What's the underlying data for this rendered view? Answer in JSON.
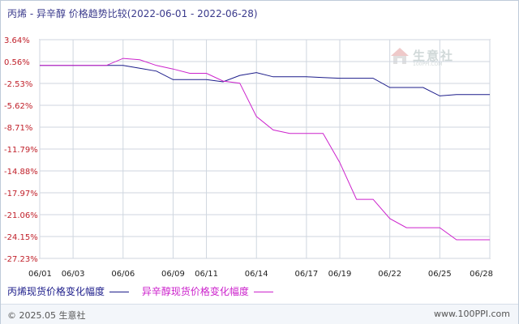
{
  "header": {
    "title": "丙烯 - 异辛醇 价格趋势比较",
    "date_range": "(2022-06-01 - 2022-06-28)"
  },
  "watermark": {
    "text": "生意社",
    "url": "100PPI.COM"
  },
  "footer": {
    "copyright": "© 2025.05 生意社",
    "site": "www.100PPI.com"
  },
  "colors": {
    "series1": "#1c1c8a",
    "series2": "#cc22cc",
    "y_tick": "#c0202a",
    "grid": "#cfd6df",
    "axis": "#888888"
  },
  "chart_data": {
    "type": "line",
    "title": "丙烯 - 异辛醇 价格趋势比较",
    "xlabel": "",
    "ylabel": "",
    "x": [
      "06/01",
      "06/02",
      "06/03",
      "06/04",
      "06/05",
      "06/06",
      "06/07",
      "06/08",
      "06/09",
      "06/10",
      "06/11",
      "06/12",
      "06/13",
      "06/14",
      "06/15",
      "06/16",
      "06/17",
      "06/18",
      "06/19",
      "06/20",
      "06/21",
      "06/22",
      "06/23",
      "06/24",
      "06/25",
      "06/26",
      "06/27",
      "06/28"
    ],
    "x_tick_labels": [
      "06/01",
      "06/03",
      "06/06",
      "06/09",
      "06/11",
      "06/14",
      "06/17",
      "06/19",
      "06/22",
      "06/25",
      "06/28"
    ],
    "y_ticks": [
      "3.64%",
      "0.56%",
      "-2.53%",
      "-5.62%",
      "-8.71%",
      "-11.79%",
      "-14.88%",
      "-17.97%",
      "-21.06%",
      "-24.15%",
      "-27.23%"
    ],
    "ylim": [
      -27.23,
      3.64
    ],
    "grid": true,
    "legend_position": "bottom-left",
    "series": [
      {
        "name": "丙烯现货价格变化幅度",
        "color": "#1c1c8a",
        "values": [
          0,
          0,
          0,
          0,
          0,
          0,
          -0.4,
          -0.8,
          -2.0,
          -2.0,
          -2.0,
          -2.3,
          -1.4,
          -1.0,
          -1.6,
          -1.6,
          -1.6,
          -1.7,
          -1.8,
          -1.8,
          -1.8,
          -3.1,
          -3.1,
          -3.1,
          -4.3,
          -4.1,
          -4.1,
          -4.1
        ]
      },
      {
        "name": "异辛醇现货价格变化幅度",
        "color": "#cc22cc",
        "values": [
          0,
          0,
          0,
          0,
          0,
          1.0,
          0.8,
          0.0,
          -0.5,
          -1.1,
          -1.1,
          -2.2,
          -2.5,
          -7.2,
          -9.1,
          -9.6,
          -9.6,
          -9.6,
          -13.7,
          -18.9,
          -18.9,
          -21.6,
          -22.9,
          -22.9,
          -22.9,
          -24.6,
          -24.6,
          -24.6
        ]
      }
    ]
  }
}
